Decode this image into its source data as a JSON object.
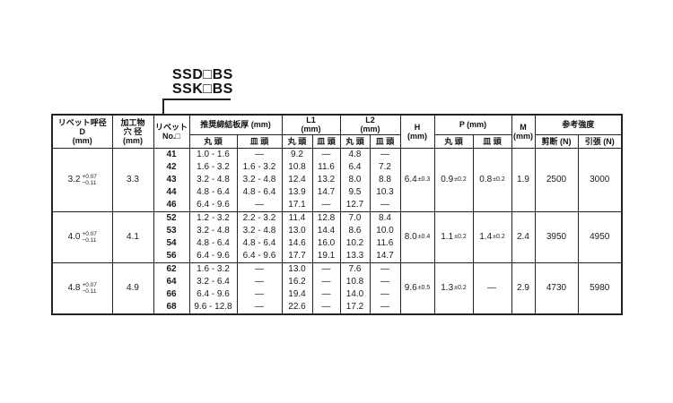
{
  "title": {
    "code1": "SSD□BS",
    "code2": "SSK□BS"
  },
  "table": {
    "headers": {
      "rivet_dia": [
        "リベット呼径",
        "D",
        "(mm)"
      ],
      "workpiece_hole": [
        "加工物",
        "穴 径",
        "(mm)"
      ],
      "rivet_no": [
        "リベット",
        "No.□"
      ],
      "plate_thickness": "推奨締結板厚 (mm)",
      "round_head": "丸 頭",
      "csk_head": "皿 頭",
      "l1": [
        "L1",
        "(mm)"
      ],
      "l2": [
        "L2",
        "(mm)"
      ],
      "h": [
        "H",
        "(mm)"
      ],
      "p": "P (mm)",
      "m": [
        "M",
        "(mm)"
      ],
      "ref_strength": "参考強度",
      "shear": "剪断 (N)",
      "tensile": "引張 (N)"
    },
    "groups": [
      {
        "d": "3.2",
        "d_tol_plus": "+0.07",
        "d_tol_minus": "−0.11",
        "hole": "3.3",
        "nos": [
          "41",
          "42",
          "43",
          "44",
          "46"
        ],
        "thickness_round": [
          "1.0 - 1.6",
          "1.6 - 3.2",
          "3.2 - 4.8",
          "4.8 - 6.4",
          "6.4 - 9.6"
        ],
        "thickness_csk": [
          "—",
          "1.6 - 3.2",
          "3.2 - 4.8",
          "4.8 - 6.4",
          "—"
        ],
        "l1_round": [
          "9.2",
          "10.8",
          "12.4",
          "13.9",
          "17.1"
        ],
        "l1_csk": [
          "—",
          "11.6",
          "13.2",
          "14.7",
          "—"
        ],
        "l2_round": [
          "4.8",
          "6.4",
          "8.0",
          "9.5",
          "12.7"
        ],
        "l2_csk": [
          "—",
          "7.2",
          "8.8",
          "10.3",
          "—"
        ],
        "h_val": "6.4",
        "h_tol": "±0.3",
        "p_round_val": "0.9",
        "p_round_tol": "±0.2",
        "p_csk_val": "0.8",
        "p_csk_tol": "±0.2",
        "m": "1.9",
        "shear": "2500",
        "tensile": "3000"
      },
      {
        "d": "4.0",
        "d_tol_plus": "+0.07",
        "d_tol_minus": "−0.11",
        "hole": "4.1",
        "nos": [
          "52",
          "53",
          "54",
          "56"
        ],
        "thickness_round": [
          "1.2 - 3.2",
          "3.2 - 4.8",
          "4.8 - 6.4",
          "6.4 - 9.6"
        ],
        "thickness_csk": [
          "2.2 - 3.2",
          "3.2 - 4.8",
          "4.8 - 6.4",
          "6.4 - 9.6"
        ],
        "l1_round": [
          "11.4",
          "13.0",
          "14.6",
          "17.7"
        ],
        "l1_csk": [
          "12.8",
          "14.4",
          "16.0",
          "19.1"
        ],
        "l2_round": [
          "7.0",
          "8.6",
          "10.2",
          "13.3"
        ],
        "l2_csk": [
          "8.4",
          "10.0",
          "11.6",
          "14.7"
        ],
        "h_val": "8.0",
        "h_tol": "±0.4",
        "p_round_val": "1.1",
        "p_round_tol": "±0.2",
        "p_csk_val": "1.4",
        "p_csk_tol": "±0.2",
        "m": "2.4",
        "shear": "3950",
        "tensile": "4950"
      },
      {
        "d": "4.8",
        "d_tol_plus": "+0.07",
        "d_tol_minus": "−0.11",
        "hole": "4.9",
        "nos": [
          "62",
          "64",
          "66",
          "68"
        ],
        "thickness_round": [
          "1.6 - 3.2",
          "3.2 - 6.4",
          "6.4 - 9.6",
          "9.6 - 12.8"
        ],
        "thickness_csk": [
          "—",
          "—",
          "—",
          "—"
        ],
        "l1_round": [
          "13.0",
          "16.2",
          "19.4",
          "22.6"
        ],
        "l1_csk": [
          "—",
          "—",
          "—",
          "—"
        ],
        "l2_round": [
          "7.6",
          "10.8",
          "14.0",
          "17.2"
        ],
        "l2_csk": [
          "—",
          "—",
          "—",
          "—"
        ],
        "h_val": "9.6",
        "h_tol": "±0.5",
        "p_round_val": "1.3",
        "p_round_tol": "±0.2",
        "p_csk_val": "—",
        "p_csk_tol": "",
        "m": "2.9",
        "shear": "4730",
        "tensile": "5980"
      }
    ]
  }
}
